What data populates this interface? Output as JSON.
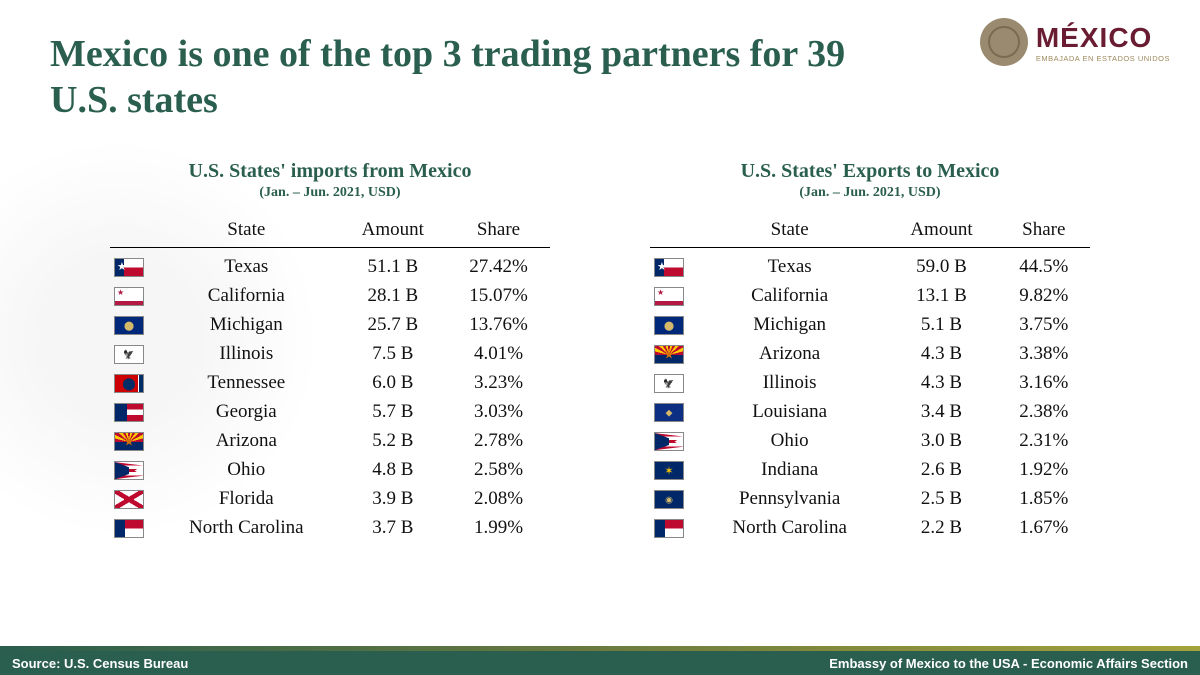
{
  "logo": {
    "main": "MÉXICO",
    "sub": "EMBAJADA EN ESTADOS UNIDOS"
  },
  "title": "Mexico is one of the top 3 trading partners for 39 U.S. states",
  "colors": {
    "brand_green": "#2a5e4e",
    "brand_maroon": "#691c32",
    "gold": "#a08a5f"
  },
  "headers": {
    "state": "State",
    "amount": "Amount",
    "share": "Share"
  },
  "imports": {
    "title": "U.S. States' imports from Mexico",
    "period": "(Jan. – Jun. 2021, USD)",
    "rows": [
      {
        "flag": "tx",
        "state": "Texas",
        "amount": "51.1 B",
        "share": "27.42%"
      },
      {
        "flag": "ca",
        "state": "California",
        "amount": "28.1 B",
        "share": "15.07%"
      },
      {
        "flag": "mi",
        "state": "Michigan",
        "amount": "25.7 B",
        "share": "13.76%"
      },
      {
        "flag": "il",
        "state": "Illinois",
        "amount": "7.5 B",
        "share": "4.01%"
      },
      {
        "flag": "tn",
        "state": "Tennessee",
        "amount": "6.0 B",
        "share": "3.23%"
      },
      {
        "flag": "ga",
        "state": "Georgia",
        "amount": "5.7 B",
        "share": "3.03%"
      },
      {
        "flag": "az",
        "state": "Arizona",
        "amount": "5.2 B",
        "share": "2.78%"
      },
      {
        "flag": "oh",
        "state": "Ohio",
        "amount": "4.8 B",
        "share": "2.58%"
      },
      {
        "flag": "fl",
        "state": "Florida",
        "amount": "3.9 B",
        "share": "2.08%"
      },
      {
        "flag": "nc",
        "state": "North Carolina",
        "amount": "3.7 B",
        "share": "1.99%"
      }
    ]
  },
  "exports": {
    "title": "U.S. States' Exports to Mexico",
    "period": "(Jan. – Jun. 2021, USD)",
    "rows": [
      {
        "flag": "tx",
        "state": "Texas",
        "amount": "59.0 B",
        "share": "44.5%"
      },
      {
        "flag": "ca",
        "state": "California",
        "amount": "13.1 B",
        "share": "9.82%"
      },
      {
        "flag": "mi",
        "state": "Michigan",
        "amount": "5.1 B",
        "share": "3.75%"
      },
      {
        "flag": "az",
        "state": "Arizona",
        "amount": "4.3 B",
        "share": "3.38%"
      },
      {
        "flag": "il",
        "state": "Illinois",
        "amount": "4.3 B",
        "share": "3.16%"
      },
      {
        "flag": "la",
        "state": "Louisiana",
        "amount": "3.4 B",
        "share": "2.38%"
      },
      {
        "flag": "oh",
        "state": "Ohio",
        "amount": "3.0 B",
        "share": "2.31%"
      },
      {
        "flag": "in",
        "state": "Indiana",
        "amount": "2.6 B",
        "share": "1.92%"
      },
      {
        "flag": "pa",
        "state": "Pennsylvania",
        "amount": "2.5 B",
        "share": "1.85%"
      },
      {
        "flag": "nc",
        "state": "North Carolina",
        "amount": "2.2 B",
        "share": "1.67%"
      }
    ]
  },
  "footer": {
    "left": "Source: U.S. Census Bureau",
    "right": "Embassy of Mexico to the USA - Economic Affairs Section"
  }
}
